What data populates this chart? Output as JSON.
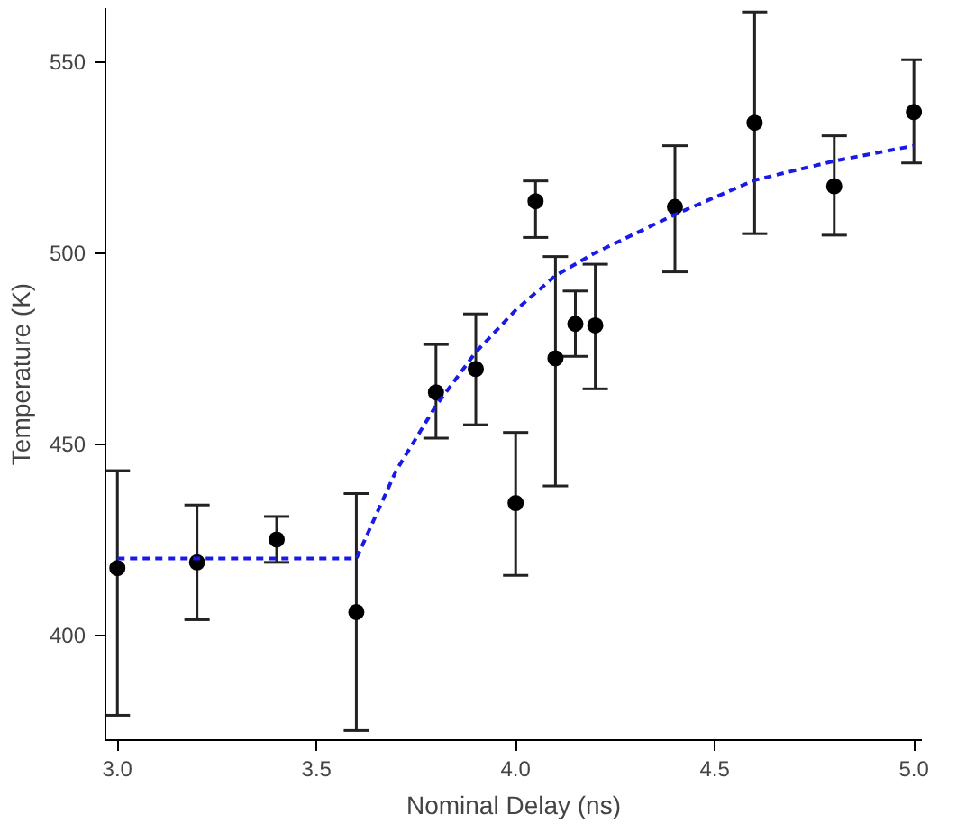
{
  "chart_data": {
    "type": "scatter",
    "xlabel": "Nominal Delay (ns)",
    "ylabel": "Temperature (K)",
    "xlim": [
      2.97,
      5.02
    ],
    "ylim": [
      372.5,
      564
    ],
    "xticks": [
      {
        "value": 3,
        "label": "3.0"
      },
      {
        "value": 3.5,
        "label": "3.5"
      },
      {
        "value": 4,
        "label": "4.0"
      },
      {
        "value": 4.5,
        "label": "4.5"
      },
      {
        "value": 5,
        "label": "5.0"
      }
    ],
    "yticks": [
      400,
      450,
      500,
      550
    ],
    "grid": false,
    "marker": "circle",
    "series": [
      {
        "color": "#000000",
        "x": [
          3.0,
          3.2,
          3.4,
          3.6,
          3.8,
          3.9,
          4.0,
          4.05,
          4.1,
          4.15,
          4.2,
          4.4,
          4.6,
          4.8,
          5.0
        ],
        "values": [
          417.5,
          419,
          425,
          406,
          463.5,
          469.6,
          434.5,
          513.5,
          472.4,
          481.4,
          481,
          512,
          534,
          517.4,
          536.8
        ],
        "errors": [
          [
            379,
            443
          ],
          [
            404,
            434
          ],
          [
            419,
            431
          ],
          [
            375,
            437
          ],
          [
            451.5,
            476
          ],
          [
            455,
            484
          ],
          [
            415.6,
            453
          ],
          [
            504,
            518.8
          ],
          [
            439,
            499
          ],
          [
            472.9,
            490
          ],
          [
            464.4,
            497
          ],
          [
            495,
            528
          ],
          [
            505,
            563
          ],
          [
            504.6,
            530.6
          ],
          [
            523.5,
            550.5
          ]
        ]
      },
      {
        "type": "line",
        "color": "#1a1ae6",
        "line_style": "dashed",
        "marker": "none",
        "x": [
          3.0,
          3.6,
          3.7,
          3.8,
          3.9,
          4.0,
          4.1,
          4.2,
          4.4,
          4.6,
          4.8,
          5.0
        ],
        "values": [
          420,
          420,
          443,
          460,
          474,
          485,
          494,
          500,
          510,
          519,
          524,
          528
        ]
      }
    ]
  }
}
